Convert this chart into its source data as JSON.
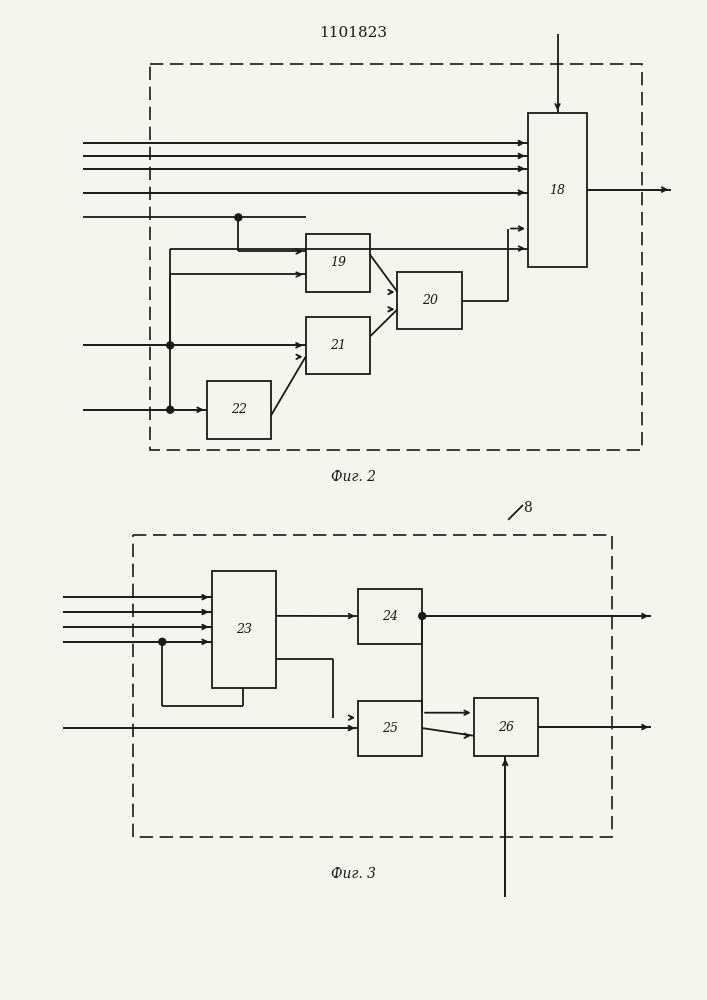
{
  "title": "1101823",
  "fig2_label": "Фиг. 2",
  "fig3_label": "Фиг. 3",
  "label8": "8",
  "bg_color": "#f5f5f0",
  "line_color": "#1a1a1a",
  "box_color": "#f5f5f0"
}
